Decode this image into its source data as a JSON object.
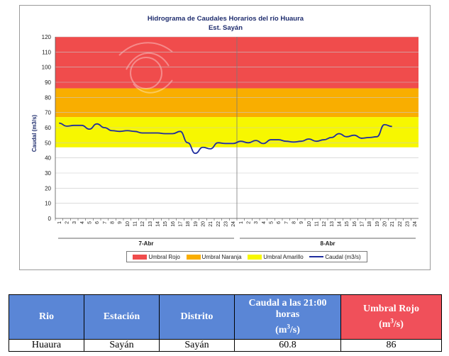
{
  "chart_data": {
    "type": "line",
    "title": "Hidrograma de Caudales Horarios del río Huaura",
    "subtitle": "Est. Sayán",
    "ylabel": "Caudal  (m3/s)",
    "ylim": [
      0,
      120
    ],
    "yticks": [
      0,
      10,
      20,
      30,
      40,
      50,
      60,
      70,
      80,
      90,
      100,
      110,
      120
    ],
    "x_tick_labels": [
      "1",
      "2",
      "3",
      "4",
      "5",
      "6",
      "7",
      "8",
      "9",
      "10",
      "11",
      "12",
      "13",
      "14",
      "15",
      "16",
      "17",
      "18",
      "19",
      "20",
      "21",
      "22",
      "23",
      "24",
      "1",
      "2",
      "3",
      "4",
      "5",
      "6",
      "7",
      "8",
      "9",
      "10",
      "11",
      "12",
      "13",
      "14",
      "15",
      "16",
      "17",
      "18",
      "19",
      "20",
      "21",
      "22",
      "23",
      "24"
    ],
    "days": [
      "7-Abr",
      "8-Abr"
    ],
    "thresholds": [
      {
        "name": "Umbral Rojo",
        "from": 86,
        "to": 120,
        "color": "#f04c4c"
      },
      {
        "name": "Umbral Naranja",
        "from": 67,
        "to": 86,
        "color": "#f9ae00"
      },
      {
        "name": "Umbral Amarillo",
        "from": 47,
        "to": 67,
        "color": "#f7f700"
      }
    ],
    "series": [
      {
        "name": "Caudal (m3/s)",
        "color": "#1f2d9e",
        "values": [
          63,
          61,
          61.5,
          61.5,
          59,
          62.5,
          60,
          58,
          57.5,
          58,
          57.5,
          56.5,
          56.5,
          56.5,
          56,
          56,
          57.5,
          50,
          43,
          47,
          46,
          50,
          49.5,
          49.5,
          51,
          50,
          51.5,
          49.5,
          52,
          52,
          51,
          50.5,
          51,
          52.5,
          51,
          52,
          53.5,
          56,
          54,
          55,
          53,
          53.5,
          54,
          62,
          60.8
        ]
      }
    ]
  },
  "legend": {
    "rojo": "Umbral Rojo",
    "naranja": "Umbral Naranja",
    "amarillo": "Umbral Amarillo",
    "caudal": "Caudal (m3/s)"
  },
  "table": {
    "headers": [
      "Rio",
      "Estación",
      "Distrito",
      "Caudal a las 21:00 horas (m3/s)",
      "Umbral Rojo (m3/s)"
    ],
    "row": [
      "Huaura",
      "Sayán",
      "Sayán",
      "60.8",
      "86"
    ],
    "colors": {
      "header_blue": "#5a86d6",
      "header_red": "#f0505a"
    }
  }
}
